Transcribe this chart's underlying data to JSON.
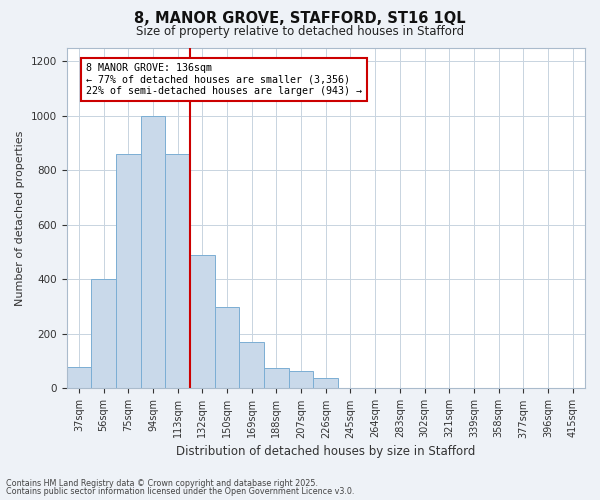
{
  "title_line1": "8, MANOR GROVE, STAFFORD, ST16 1QL",
  "title_line2": "Size of property relative to detached houses in Stafford",
  "xlabel": "Distribution of detached houses by size in Stafford",
  "ylabel": "Number of detached properties",
  "categories": [
    "37sqm",
    "56sqm",
    "75sqm",
    "94sqm",
    "113sqm",
    "132sqm",
    "150sqm",
    "169sqm",
    "188sqm",
    "207sqm",
    "226sqm",
    "245sqm",
    "264sqm",
    "283sqm",
    "302sqm",
    "321sqm",
    "339sqm",
    "358sqm",
    "377sqm",
    "396sqm",
    "415sqm"
  ],
  "values": [
    80,
    400,
    860,
    1000,
    860,
    490,
    300,
    170,
    75,
    65,
    40,
    0,
    0,
    0,
    0,
    0,
    0,
    0,
    0,
    0,
    0
  ],
  "bar_color": "#c9d9ea",
  "bar_edge_color": "#7baed4",
  "vline_index": 5,
  "vline_color": "#cc0000",
  "annotation_text": "8 MANOR GROVE: 136sqm\n← 77% of detached houses are smaller (3,356)\n22% of semi-detached houses are larger (943) →",
  "annotation_box_color": "#ffffff",
  "annotation_box_edge_color": "#cc0000",
  "ylim": [
    0,
    1250
  ],
  "yticks": [
    0,
    200,
    400,
    600,
    800,
    1000,
    1200
  ],
  "footnote1": "Contains HM Land Registry data © Crown copyright and database right 2025.",
  "footnote2": "Contains public sector information licensed under the Open Government Licence v3.0.",
  "bg_color": "#eef2f7",
  "plot_bg_color": "#ffffff",
  "grid_color": "#c8d4e0"
}
